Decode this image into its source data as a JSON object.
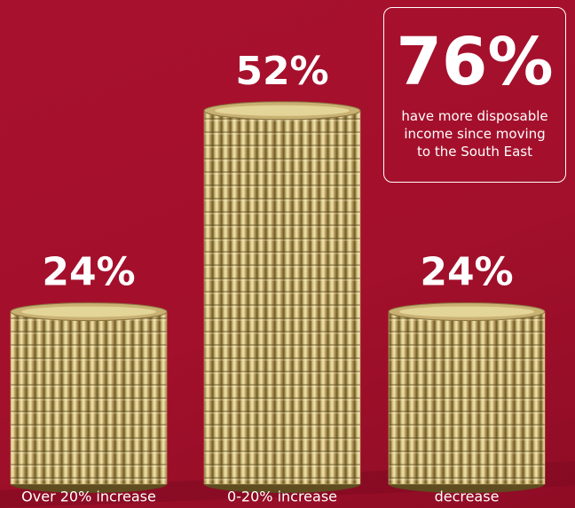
{
  "chart_data": {
    "type": "bar",
    "categories": [
      "Over 20% increase",
      "0-20% increase",
      "decrease"
    ],
    "values": [
      24,
      52,
      24
    ],
    "value_labels": [
      "24%",
      "52%",
      "24%"
    ],
    "color": "#c9b173",
    "callout": {
      "value": 76,
      "label": "76%",
      "text": "have more disposable income since moving to the South East"
    }
  }
}
